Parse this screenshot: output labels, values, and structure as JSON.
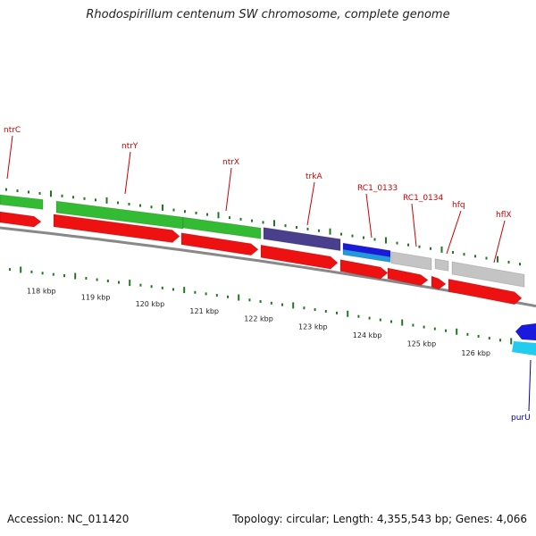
{
  "title": "Rhodospirillum centenum SW chromosome, complete genome",
  "footer": {
    "accession": "Accession: NC_011420",
    "summary": "Topology: circular; Length: 4,355,543 bp; Genes: 4,066"
  },
  "colors": {
    "cds": "#ee1111",
    "green_feature": "#33bb33",
    "purple_feature": "#4a3f8c",
    "blue_feature": "#1a1add",
    "light_blue_feature": "#2299dd",
    "grey_feature": "#c4c4c4",
    "backbone": "#888888",
    "ticks": "#227722",
    "label": "#cc0000",
    "label_blue": "#0000aa"
  },
  "gene_labels": [
    "ntrC",
    "ntrY",
    "ntrX",
    "trkA",
    "RC1_0133",
    "RC1_0134",
    "hfq",
    "hflX",
    "purU"
  ],
  "scale_labels": [
    "118 kbp",
    "119 kbp",
    "120 kbp",
    "121 kbp",
    "122 kbp",
    "123 kbp",
    "124 kbp",
    "125 kbp",
    "126 kbp"
  ]
}
